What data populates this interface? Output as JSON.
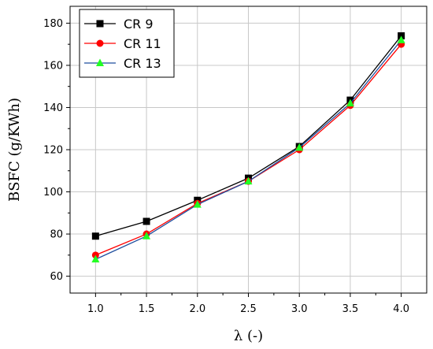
{
  "chart_data": {
    "type": "line",
    "xlabel": "λ (-)",
    "ylabel": "BSFC (g/KWh)",
    "xlim": [
      0.75,
      4.25
    ],
    "ylim": [
      52,
      188
    ],
    "x_ticks": [
      1.0,
      1.5,
      2.0,
      2.5,
      3.0,
      3.5,
      4.0
    ],
    "x_tick_labels": [
      "1.0",
      "1.5",
      "2.0",
      "2.5",
      "3.0",
      "3.5",
      "4.0"
    ],
    "y_ticks": [
      60,
      80,
      100,
      120,
      140,
      160,
      180
    ],
    "y_tick_labels": [
      "60",
      "80",
      "100",
      "120",
      "140",
      "160",
      "180"
    ],
    "grid": true,
    "legend_position": "top-left",
    "x": [
      1.0,
      1.5,
      2.0,
      2.5,
      3.0,
      3.5,
      4.0
    ],
    "series": [
      {
        "name": "CR 9",
        "marker": "square",
        "color": "#000000",
        "line_color": "#000000",
        "values": [
          79,
          86,
          96,
          106.5,
          121.5,
          143.5,
          174
        ]
      },
      {
        "name": "CR 11",
        "marker": "circle",
        "color": "#ff0000",
        "line_color": "#ff0000",
        "values": [
          70,
          80,
          94.5,
          105,
          120,
          141,
          170
        ]
      },
      {
        "name": "CR 13",
        "marker": "triangle",
        "color": "#22ff22",
        "line_color": "#1f4e9e",
        "values": [
          68,
          79,
          94,
          105,
          121,
          142,
          172
        ]
      }
    ]
  }
}
